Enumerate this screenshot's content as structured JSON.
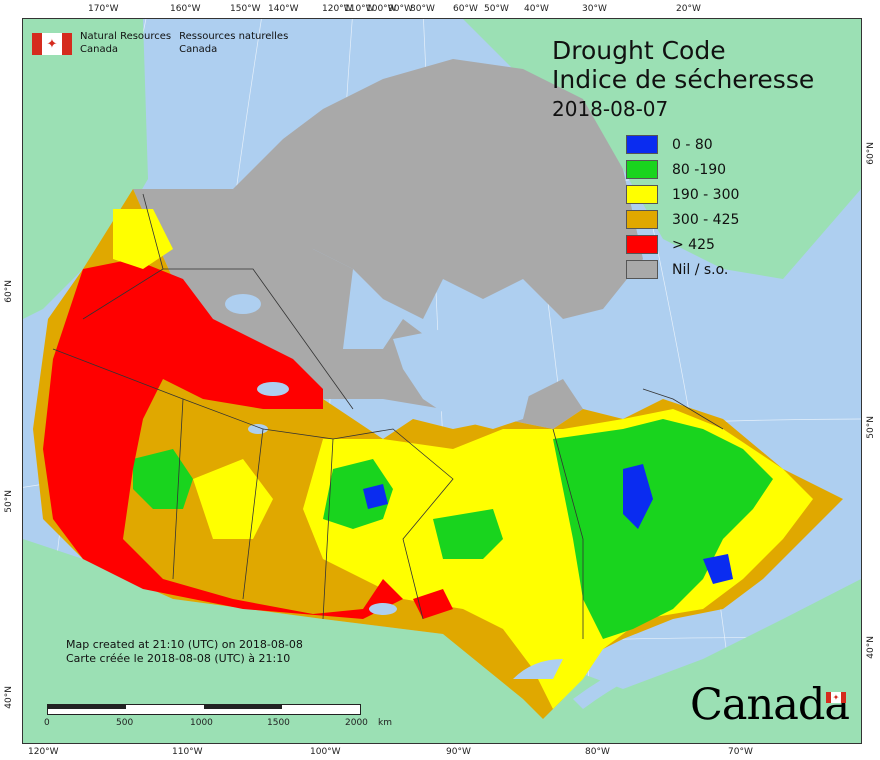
{
  "title": {
    "en": "Drought Code",
    "fr": "Indice de sécheresse",
    "date": "2018-08-07"
  },
  "legend": [
    {
      "label": "0 - 80",
      "color": "#0a2cf0"
    },
    {
      "label": "80 -190",
      "color": "#19d41e"
    },
    {
      "label": "190 - 300",
      "color": "#ffff00"
    },
    {
      "label": "300 - 425",
      "color": "#e0a800"
    },
    {
      "label": "> 425",
      "color": "#ff0000"
    },
    {
      "label": "Nil / s.o.",
      "color": "#a9a9a9"
    }
  ],
  "organization": {
    "en_line1": "Natural Resources",
    "en_line2": "Canada",
    "fr_line1": "Ressources naturelles",
    "fr_line2": "Canada"
  },
  "credit": {
    "en": "Map created at 21:10 (UTC) on 2018-08-08",
    "fr": "Carte créée le 2018-08-08 (UTC) à 21:10"
  },
  "scale": {
    "labels": [
      "0",
      "500",
      "1000",
      "1500",
      "2000"
    ],
    "unit": "km"
  },
  "wordmark": "Canada",
  "ticks": {
    "top": [
      "170°W",
      "160°W",
      "150°W",
      "140°W",
      "120°W",
      "110°W",
      "100°W",
      "90°W",
      "80°W",
      "60°W",
      "50°W",
      "40°W",
      "30°W",
      "20°W"
    ],
    "bottom": [
      "120°W",
      "110°W",
      "100°W",
      "90°W",
      "80°W",
      "70°W"
    ],
    "left": [
      "60°N",
      "50°N",
      "40°N"
    ],
    "right": [
      "60°N",
      "50°N",
      "40°N"
    ]
  },
  "colors": {
    "ocean": "#aecff0",
    "land_other": "#9be0b4",
    "greenland": "#9be0b4"
  }
}
